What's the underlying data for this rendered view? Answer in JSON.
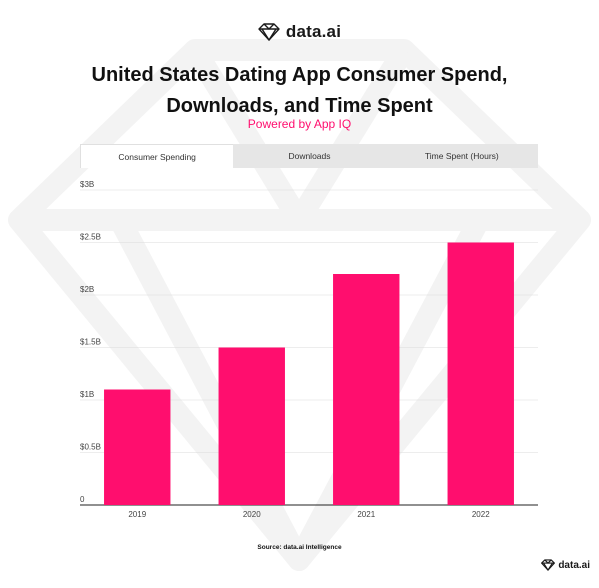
{
  "brand": {
    "name": "data.ai",
    "logo_icon": "diamond-logo-icon",
    "accent": "#ff0e6e"
  },
  "header": {
    "title": "United States Dating App Consumer Spend, Downloads, and Time Spent",
    "subtitle": "Powered by App IQ"
  },
  "tabs": [
    {
      "label": "Consumer Spending",
      "active": true
    },
    {
      "label": "Downloads",
      "active": false
    },
    {
      "label": "Time Spent (Hours)",
      "active": false
    }
  ],
  "chart_data": {
    "type": "bar",
    "title": "",
    "xlabel": "",
    "ylabel": "",
    "categories": [
      "2019",
      "2020",
      "2021",
      "2022"
    ],
    "values": [
      1.1,
      1.5,
      2.2,
      2.5
    ],
    "ylim": [
      0,
      3
    ],
    "yticks": [
      {
        "value": 0,
        "label": "0"
      },
      {
        "value": 0.5,
        "label": "$0.5B"
      },
      {
        "value": 1,
        "label": "$1B"
      },
      {
        "value": 1.5,
        "label": "$1.5B"
      },
      {
        "value": 2,
        "label": "$2B"
      },
      {
        "value": 2.5,
        "label": "$2.5B"
      },
      {
        "value": 3,
        "label": "$3B"
      }
    ],
    "bar_color": "#ff0e6e",
    "grid": true,
    "legend": "none"
  },
  "footer": {
    "source": "Source: data.ai Intelligence"
  }
}
